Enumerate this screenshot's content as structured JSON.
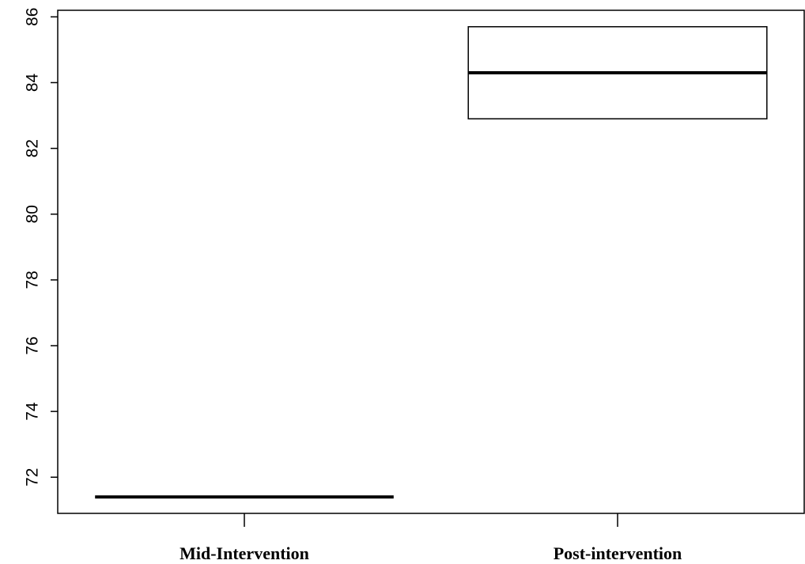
{
  "chart_data": {
    "type": "box",
    "title": "",
    "xlabel": "",
    "ylabel": "",
    "categories": [
      "Mid-Intervention",
      "Post-intervention"
    ],
    "ylim": [
      70.9,
      86.2
    ],
    "yticks": [
      72,
      74,
      76,
      78,
      80,
      82,
      84,
      86
    ],
    "ytick_labels": [
      "72",
      "74",
      "76",
      "78",
      "80",
      "82",
      "84",
      "86"
    ],
    "boxes": [
      {
        "category": "Mid-Intervention",
        "q1": 71.4,
        "median": 71.4,
        "q3": 71.4
      },
      {
        "category": "Post-intervention",
        "q1": 82.9,
        "median": 84.3,
        "q3": 85.7
      }
    ],
    "grid": false,
    "legend": "none",
    "colors": {
      "box_fill": "#ffffff",
      "box_stroke": "#000000",
      "median": "#000000",
      "axis": "#000000"
    }
  }
}
